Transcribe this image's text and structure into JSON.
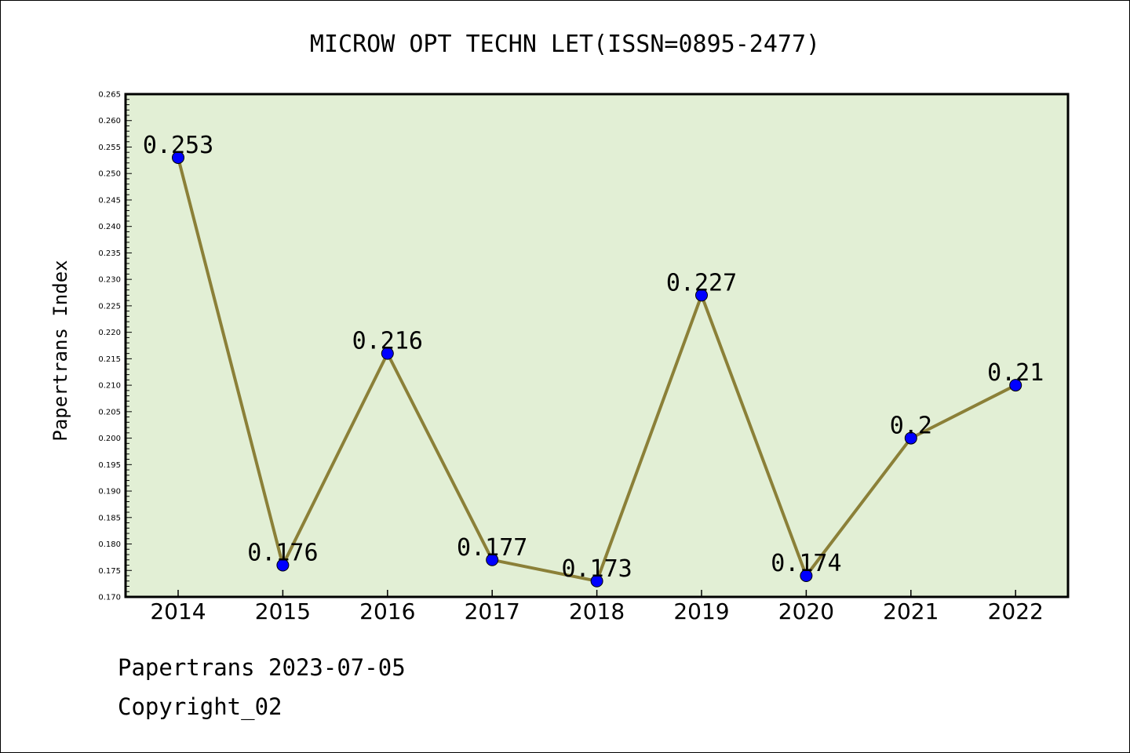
{
  "chart_data": {
    "type": "line",
    "title": "MICROW OPT TECHN LET(ISSN=0895-2477)",
    "ylabel": "Papertrans Index",
    "xlabel": "",
    "categories": [
      "2014",
      "2015",
      "2016",
      "2017",
      "2018",
      "2019",
      "2020",
      "2021",
      "2022"
    ],
    "values": [
      0.253,
      0.176,
      0.216,
      0.177,
      0.173,
      0.227,
      0.174,
      0.2,
      0.21
    ],
    "data_labels": [
      "0.253",
      "0.176",
      "0.216",
      "0.177",
      "0.173",
      "0.227",
      "0.174",
      "0.2",
      "0.21"
    ],
    "ylim": [
      0.17,
      0.265
    ],
    "yticks": [
      "0.170",
      "0.175",
      "0.180",
      "0.185",
      "0.190",
      "0.195",
      "0.200",
      "0.205",
      "0.210",
      "0.215",
      "0.220",
      "0.225",
      "0.230",
      "0.235",
      "0.240",
      "0.245",
      "0.250",
      "0.255",
      "0.260",
      "0.265"
    ],
    "grid": false,
    "colors": {
      "plot_background": "#e2efd5",
      "line": "#8b8038",
      "marker": "#0000ff"
    }
  },
  "footer": {
    "line1": "Papertrans 2023-07-05",
    "line2": "Copyright_02"
  }
}
